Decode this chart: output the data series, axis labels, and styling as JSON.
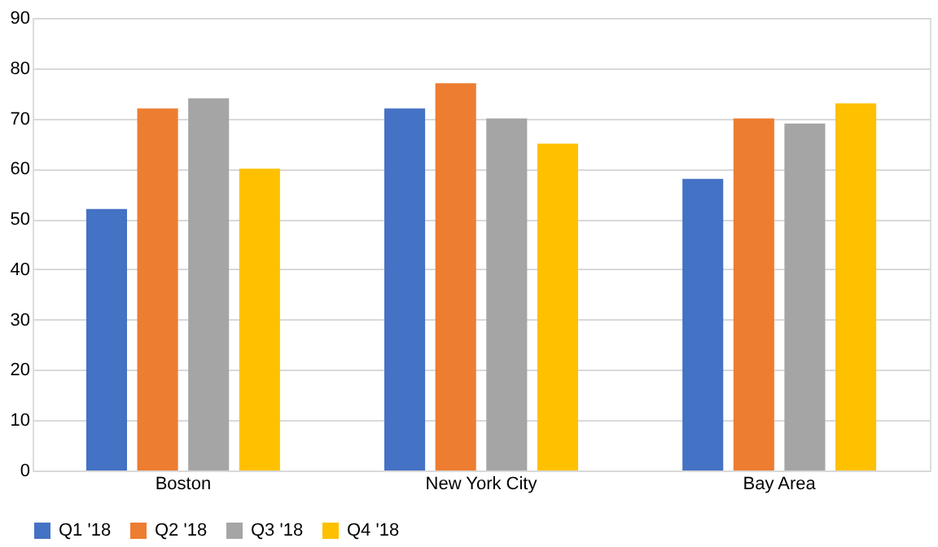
{
  "chart_data": {
    "type": "bar",
    "categories": [
      "Boston",
      "New York City",
      "Bay Area"
    ],
    "series": [
      {
        "name": "Q1 '18",
        "color": "#4472c4",
        "values": [
          52,
          72,
          58
        ]
      },
      {
        "name": "Q2 '18",
        "color": "#ed7d31",
        "values": [
          72,
          77,
          70
        ]
      },
      {
        "name": "Q3 '18",
        "color": "#a5a5a5",
        "values": [
          74,
          70,
          69
        ]
      },
      {
        "name": "Q4 '18",
        "color": "#ffc000",
        "values": [
          60,
          65,
          73
        ]
      }
    ],
    "ylim": [
      0,
      90
    ],
    "yticks": [
      0,
      10,
      20,
      30,
      40,
      50,
      60,
      70,
      80,
      90
    ],
    "grid": "y",
    "legend": "bottom"
  }
}
